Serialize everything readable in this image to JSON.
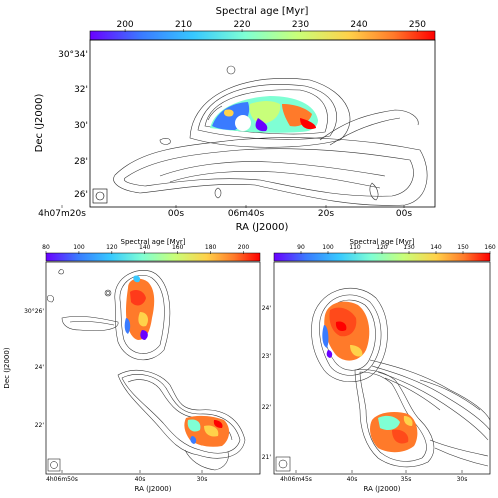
{
  "chart_data": [
    {
      "type": "heatmap",
      "colorbar": {
        "title": "Spectral age [Myr]",
        "ticks": [
          "200",
          "210",
          "220",
          "230",
          "240",
          "250"
        ],
        "range": [
          194,
          253
        ]
      },
      "xlabel": "RA (J2000)",
      "ylabel": "Dec (J2000)",
      "xticks": [
        "4h07m20s",
        "00s",
        "06m40s",
        "20s",
        "00s"
      ],
      "yticks": [
        "30°34'",
        "32'",
        "30'",
        "28'",
        "26'"
      ]
    },
    {
      "type": "heatmap",
      "colorbar": {
        "title": "Spectral age [Myr]",
        "ticks": [
          "80",
          "100",
          "120",
          "140",
          "160",
          "180",
          "200"
        ],
        "range": [
          80,
          210
        ]
      },
      "xlabel": "RA (J2000)",
      "ylabel": "Dec (J2000)",
      "xticks": [
        "4h06m50s",
        "40s",
        "30s"
      ],
      "yticks": [
        "30°26'",
        "24'",
        "22'"
      ]
    },
    {
      "type": "heatmap",
      "colorbar": {
        "title": "Spectral age [Myr]",
        "ticks": [
          "90",
          "100",
          "110",
          "120",
          "130",
          "140",
          "150",
          "160"
        ],
        "range": [
          80,
          160
        ]
      },
      "xlabel": "RA (J2000)",
      "ylabel": "",
      "xticks": [
        "4h06m45s",
        "40s",
        "35s",
        "30s"
      ],
      "yticks": [
        "24'",
        "23'",
        "22'",
        "21'"
      ]
    }
  ],
  "colormap": [
    "#6a00ff",
    "#3a7bff",
    "#37c8ff",
    "#7fffd4",
    "#c8ff7a",
    "#ffd24a",
    "#ff7a2a",
    "#ff0000"
  ]
}
